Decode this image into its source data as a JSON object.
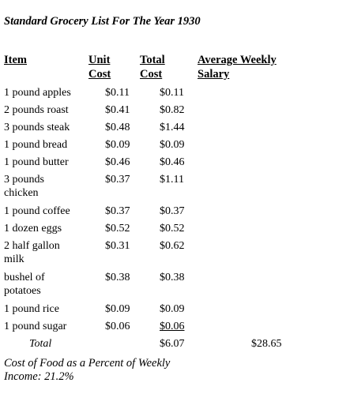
{
  "title": "Standard Grocery List For The Year 1930",
  "headers": {
    "item": "Item",
    "unit_cost": "Unit Cost",
    "total_cost": "Total Cost",
    "salary": "Average Weekly Salary"
  },
  "rows": [
    {
      "item": "1 pound apples",
      "unit": "$0.11",
      "total": "$0.11"
    },
    {
      "item": "2 pounds roast",
      "unit": "$0.41",
      "total": "$0.82"
    },
    {
      "item": "3 pounds steak",
      "unit": "$0.48",
      "total": "$1.44"
    },
    {
      "item": "1 pound bread",
      "unit": "$0.09",
      "total": "$0.09"
    },
    {
      "item": "1 pound butter",
      "unit": "$0.46",
      "total": "$0.46"
    },
    {
      "item": "3 pounds chicken",
      "unit": "$0.37",
      "total": "$1.11"
    },
    {
      "item": "1 pound coffee",
      "unit": "$0.37",
      "total": "$0.37"
    },
    {
      "item": "1 dozen eggs",
      "unit": "$0.52",
      "total": "$0.52"
    },
    {
      "item": "2 half gallon milk",
      "unit": "$0.31",
      "total": "$0.62"
    },
    {
      "item": "bushel of potatoes",
      "unit": "$0.38",
      "total": "$0.38"
    },
    {
      "item": "1 pound rice",
      "unit": "$0.09",
      "total": "$0.09"
    },
    {
      "item": "1 pound sugar",
      "unit": "$0.06",
      "total": "$0.06"
    }
  ],
  "total": {
    "label": "Total",
    "value": "$6.07",
    "salary": "$28.65"
  },
  "footer": "Cost of Food as a Percent of Weekly Income: 21.2%"
}
